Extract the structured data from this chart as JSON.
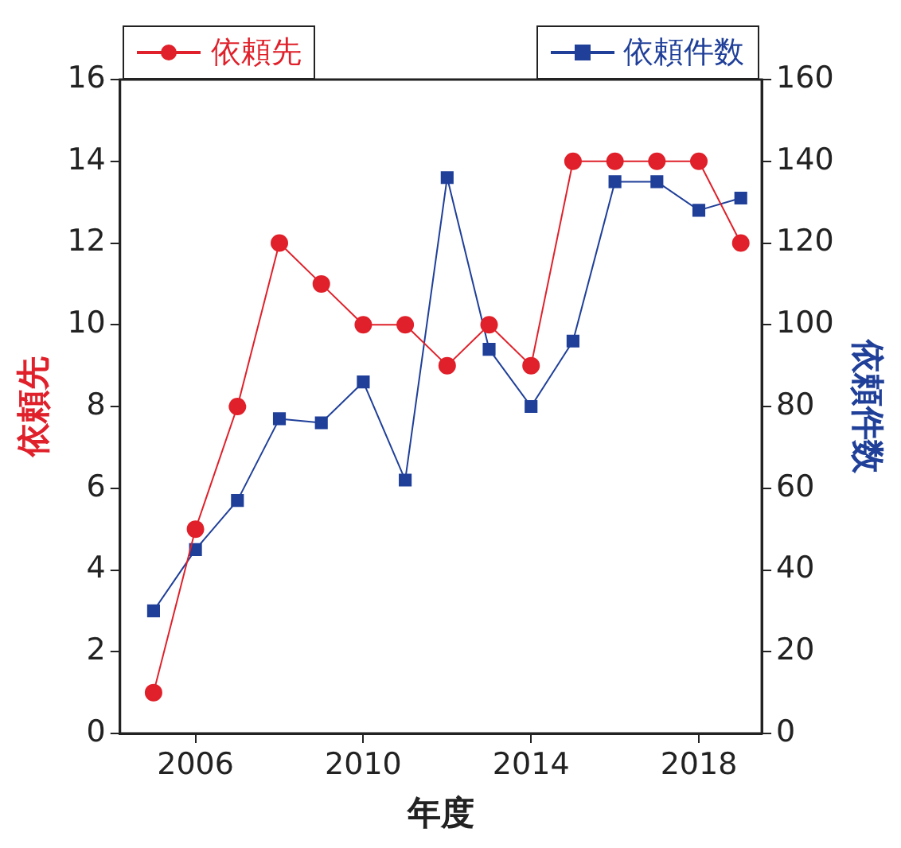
{
  "chart_data": {
    "type": "line",
    "xlabel": "年度",
    "ylabel": "依頼先",
    "y2label": "依頼件数",
    "x": [
      2005,
      2006,
      2007,
      2008,
      2009,
      2010,
      2011,
      2012,
      2013,
      2014,
      2015,
      2016,
      2017,
      2018,
      2019
    ],
    "series": [
      {
        "name": "依頼先",
        "color": "#e0202a",
        "marker": "circle",
        "values": [
          1,
          5,
          8,
          12,
          11,
          10,
          10,
          9,
          10,
          9,
          14,
          14,
          14,
          14,
          12
        ]
      },
      {
        "name": "依頼件数",
        "color": "#1f3f99",
        "marker": "square",
        "axis": "y2",
        "values": [
          30,
          45,
          57,
          77,
          76,
          86,
          62,
          136,
          94,
          80,
          96,
          135,
          135,
          128,
          131
        ]
      }
    ],
    "xlim": [
      2004.2,
      2019.5
    ],
    "xticks": [
      2006,
      2010,
      2014,
      2018
    ],
    "ylim": [
      0,
      16
    ],
    "yticks": [
      0,
      2,
      4,
      6,
      8,
      10,
      12,
      14,
      16
    ],
    "y2lim": [
      0,
      160
    ],
    "y2ticks": [
      0,
      20,
      40,
      60,
      80,
      100,
      120,
      140,
      160
    ],
    "grid": false,
    "legend": "top"
  }
}
